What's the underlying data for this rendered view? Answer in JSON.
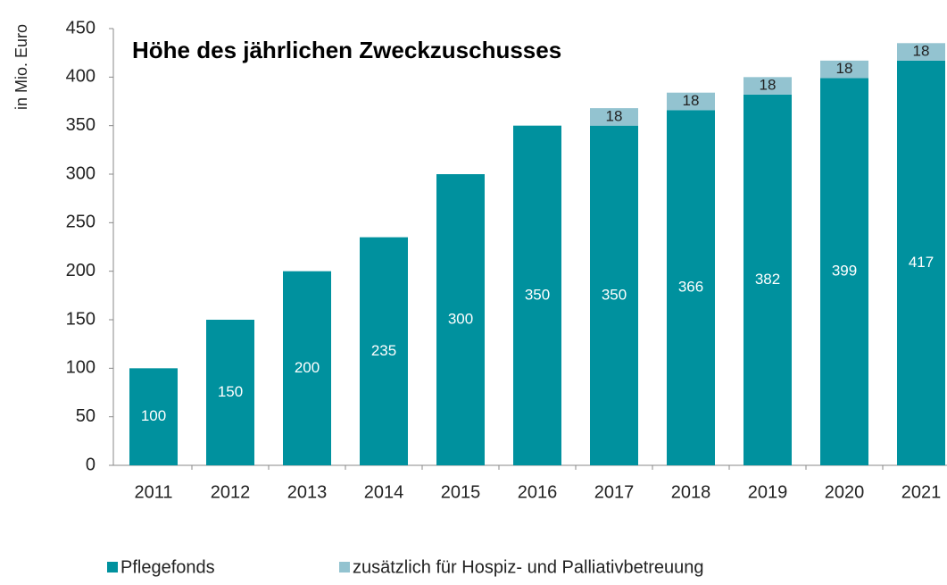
{
  "chart_data": {
    "type": "stacked_bar",
    "title": "Höhe des jährlichen Zweckzuschusses",
    "y_label": "in Mio. Euro",
    "categories": [
      "2011",
      "2012",
      "2013",
      "2014",
      "2015",
      "2016",
      "2017",
      "2018",
      "2019",
      "2020",
      "2021"
    ],
    "series": [
      {
        "name": "Pflegefonds",
        "color": "#00919e",
        "values": [
          100,
          150,
          200,
          235,
          300,
          350,
          350,
          366,
          382,
          399,
          417
        ]
      },
      {
        "name": "zusätzlich für Hospiz- und Palliativbetreuung",
        "color": "#93c3d0",
        "values": [
          null,
          null,
          null,
          null,
          null,
          null,
          18,
          18,
          18,
          18,
          18
        ]
      }
    ],
    "ylim": [
      0,
      450
    ],
    "yticks": [
      0,
      50,
      100,
      150,
      200,
      250,
      300,
      350,
      400,
      450
    ],
    "legend": "bottom"
  }
}
